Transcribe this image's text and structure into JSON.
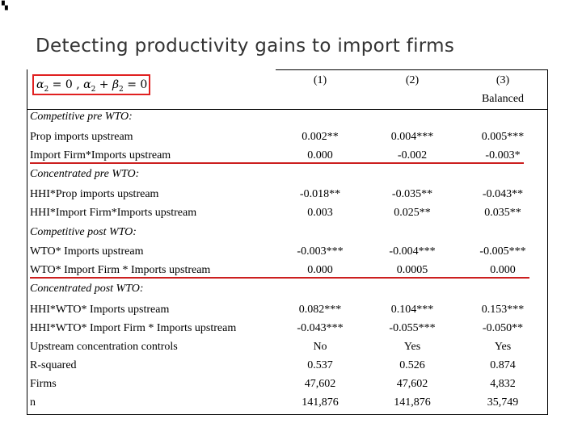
{
  "title": "Detecting productivity gains to import firms",
  "formula": {
    "a2": "α",
    "sub2": "2",
    "eq0a": " = 0 , ",
    "a2b": "α",
    "sub2b": "2",
    "plus": " + ",
    "b2": "β",
    "sub2c": "2",
    "eq0b": " = 0"
  },
  "columns": [
    {
      "num": "(1)",
      "sub": ""
    },
    {
      "num": "(2)",
      "sub": ""
    },
    {
      "num": "(3)",
      "sub": "Balanced"
    }
  ],
  "rows": [
    {
      "label": "Competitive pre WTO:",
      "section": true,
      "values": [
        "",
        "",
        ""
      ]
    },
    {
      "label": "Prop imports upstream",
      "section": false,
      "values": [
        "0.002**",
        "0.004***",
        "0.005***"
      ]
    },
    {
      "label": "Import Firm*Imports upstream",
      "section": false,
      "values": [
        "0.000",
        "-0.002",
        "-0.003*"
      ]
    },
    {
      "label": "Concentrated pre WTO:",
      "section": true,
      "values": [
        "",
        "",
        ""
      ]
    },
    {
      "label": "HHI*Prop imports upstream",
      "section": false,
      "values": [
        "-0.018**",
        "-0.035**",
        "-0.043**"
      ]
    },
    {
      "label": "HHI*Import Firm*Imports upstream",
      "section": false,
      "values": [
        "0.003",
        "0.025**",
        "0.035**"
      ]
    },
    {
      "label": "Competitive post WTO:",
      "section": true,
      "values": [
        "",
        "",
        ""
      ]
    },
    {
      "label": "WTO* Imports upstream",
      "section": false,
      "values": [
        "-0.003***",
        "-0.004***",
        "-0.005***"
      ]
    },
    {
      "label": "WTO* Import Firm * Imports upstream",
      "section": false,
      "values": [
        "0.000",
        "0.0005",
        "0.000"
      ]
    },
    {
      "label": "Concentrated post WTO:",
      "section": true,
      "values": [
        "",
        "",
        ""
      ]
    },
    {
      "label": "HHI*WTO* Imports upstream",
      "section": false,
      "values": [
        "0.082***",
        "0.104***",
        "0.153***"
      ]
    },
    {
      "label": "HHI*WTO* Import Firm * Imports upstream",
      "section": false,
      "values": [
        "-0.043***",
        "-0.055***",
        "-0.050**"
      ]
    },
    {
      "label": "Upstream concentration controls",
      "section": false,
      "values": [
        "No",
        "Yes",
        "Yes"
      ]
    },
    {
      "label": "R-squared",
      "section": false,
      "values": [
        "0.537",
        "0.526",
        "0.874"
      ]
    },
    {
      "label": "Firms",
      "section": false,
      "values": [
        "47,602",
        "47,602",
        "4,832"
      ]
    },
    {
      "label": "n",
      "section": false,
      "values": [
        "141,876",
        "141,876",
        "35,749"
      ]
    }
  ],
  "colors": {
    "highlight": "#cc1f1f",
    "formula_border": "#e02020"
  }
}
